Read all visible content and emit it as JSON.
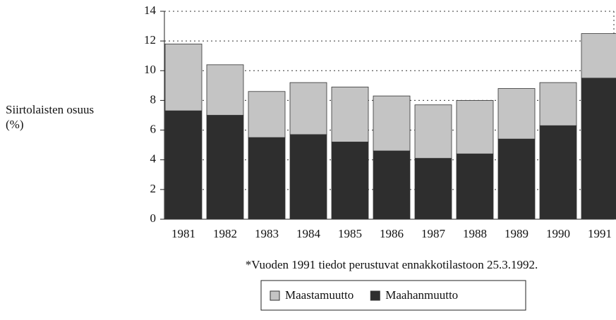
{
  "chart_data": {
    "type": "stacked_bar",
    "y_label": [
      "Siirtolaisten osuus",
      "(%)"
    ],
    "note": "*Vuoden 1991 tiedot perustuvat ennakkotilastoon 25.3.1992.",
    "categories": [
      "1981",
      "1982",
      "1983",
      "1984",
      "1985",
      "1986",
      "1987",
      "1988",
      "1989",
      "1990",
      "1991"
    ],
    "series": [
      {
        "name": "Maahanmuutto",
        "color": "#2e2e2e",
        "values": [
          7.3,
          7.0,
          5.5,
          5.7,
          5.2,
          4.6,
          4.1,
          4.4,
          5.4,
          6.3,
          9.5
        ]
      },
      {
        "name": "Maastamuutto",
        "color": "#c4c4c4",
        "values": [
          4.5,
          3.4,
          3.1,
          3.5,
          3.7,
          3.7,
          3.6,
          3.6,
          3.4,
          2.9,
          3.0
        ]
      }
    ],
    "ylim": [
      0,
      14
    ],
    "yticks": [
      0,
      2,
      4,
      6,
      8,
      10,
      12,
      14
    ],
    "grid": true,
    "legend": "bottom"
  }
}
